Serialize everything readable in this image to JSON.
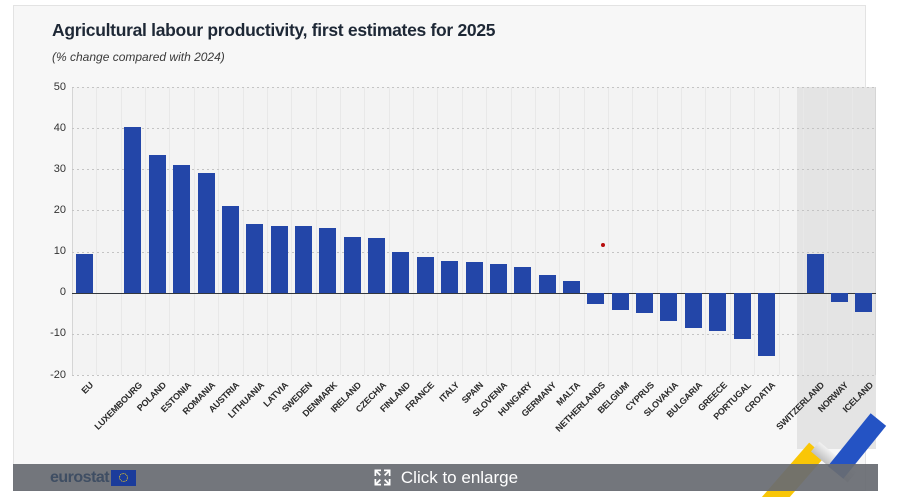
{
  "header": {
    "title": "Agricultural labour productivity, first estimates for 2025",
    "subtitle": "(% change compared with 2024)"
  },
  "chart_data": {
    "type": "bar",
    "title": "Agricultural labour productivity, first estimates for 2025",
    "subtitle": "(% change compared with 2024)",
    "unit": "% change",
    "bar_color": "#2346a8",
    "efta_band_color": "#e4e4e4",
    "grid": "on",
    "ylim": [
      -20,
      50
    ],
    "y_ticks": [
      50,
      40,
      30,
      20,
      10,
      0,
      -10,
      -20
    ],
    "categories": [
      {
        "label": "EU",
        "value": 9.5,
        "group": "eu-aggregate"
      },
      {
        "label": "LUXEMBOURG",
        "value": 40.3,
        "group": "member"
      },
      {
        "label": "POLAND",
        "value": 33.5,
        "group": "member"
      },
      {
        "label": "ESTONIA",
        "value": 31.0,
        "group": "member"
      },
      {
        "label": "ROMANIA",
        "value": 29.0,
        "group": "member"
      },
      {
        "label": "AUSTRIA",
        "value": 21.0,
        "group": "member"
      },
      {
        "label": "LITHUANIA",
        "value": 16.7,
        "group": "member"
      },
      {
        "label": "LATVIA",
        "value": 16.2,
        "group": "member"
      },
      {
        "label": "SWEDEN",
        "value": 16.2,
        "group": "member"
      },
      {
        "label": "DENMARK",
        "value": 15.8,
        "group": "member"
      },
      {
        "label": "IRELAND",
        "value": 13.6,
        "group": "member"
      },
      {
        "label": "CZECHIA",
        "value": 13.2,
        "group": "member"
      },
      {
        "label": "FINLAND",
        "value": 10.0,
        "group": "member"
      },
      {
        "label": "FRANCE",
        "value": 8.7,
        "group": "member"
      },
      {
        "label": "ITALY",
        "value": 7.8,
        "group": "member"
      },
      {
        "label": "SPAIN",
        "value": 7.4,
        "group": "member"
      },
      {
        "label": "SLOVENIA",
        "value": 7.0,
        "group": "member"
      },
      {
        "label": "HUNGARY",
        "value": 6.3,
        "group": "member"
      },
      {
        "label": "GERMANY",
        "value": 4.3,
        "group": "member"
      },
      {
        "label": "MALTA",
        "value": 2.9,
        "group": "member"
      },
      {
        "label": "NETHERLANDS",
        "value": -2.7,
        "group": "member"
      },
      {
        "label": "BELGIUM",
        "value": -4.2,
        "group": "member"
      },
      {
        "label": "CYPRUS",
        "value": -5.0,
        "group": "member"
      },
      {
        "label": "SLOVAKIA",
        "value": -6.8,
        "group": "member"
      },
      {
        "label": "BULGARIA",
        "value": -8.7,
        "group": "member"
      },
      {
        "label": "GREECE",
        "value": -9.4,
        "group": "member"
      },
      {
        "label": "PORTUGAL",
        "value": -11.3,
        "group": "member"
      },
      {
        "label": "CROATIA",
        "value": -15.4,
        "group": "member"
      },
      {
        "label": "SWITZERLAND",
        "value": 9.3,
        "group": "efta"
      },
      {
        "label": "NORWAY",
        "value": -2.2,
        "group": "efta"
      },
      {
        "label": "ICELAND",
        "value": -4.6,
        "group": "efta"
      }
    ],
    "separators_after": [
      "EU",
      "CROATIA"
    ],
    "red_dot": {
      "value": 11.7,
      "near_category": "NETHERLANDS",
      "x_fraction": 0.66,
      "color": "#b70d0d"
    }
  },
  "footer": {
    "brand": "eurostat",
    "enlarge_label": "Click to enlarge"
  }
}
